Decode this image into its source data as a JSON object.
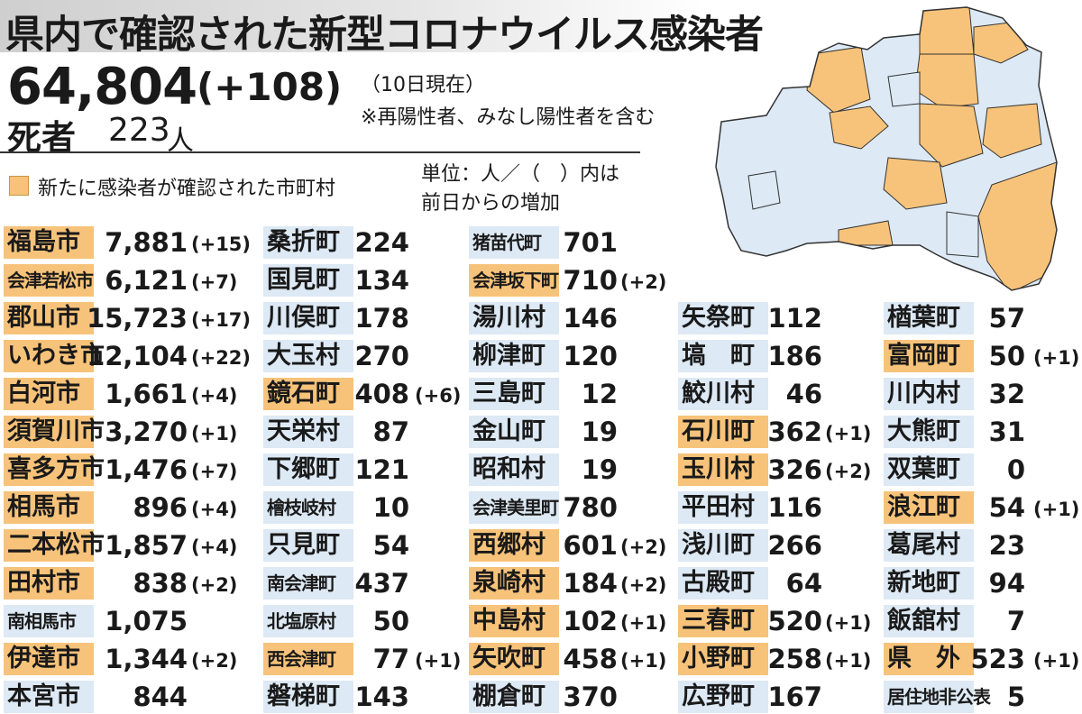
{
  "title": "県内で確認された新型コロナウイルス感染者",
  "total": {
    "count": "64,804",
    "change": "(+108)",
    "as_of": "（10日現在）",
    "note": "※再陽性者、みなし陽性者を含む"
  },
  "deaths": {
    "label": "死者",
    "count": "223",
    "unit": "人"
  },
  "legend": {
    "label": "新たに感染者が確認された市町村",
    "color": "#f7c37a",
    "base_color": "#dde9f4"
  },
  "unit_note": {
    "line1": "単位：人／（　）内は",
    "line2": "前日からの増加"
  },
  "columns": [
    {
      "rows": [
        {
          "name": "福島市",
          "count": "7,881",
          "change": "(+15)",
          "highlight": true
        },
        {
          "name": "会津若松市",
          "count": "6,121",
          "change": "(+7)",
          "highlight": true,
          "small": true
        },
        {
          "name": "郡山市",
          "count": "15,723",
          "change": "(+17)",
          "highlight": true
        },
        {
          "name": "いわき市",
          "count": "12,104",
          "change": "(+22)",
          "highlight": true
        },
        {
          "name": "白河市",
          "count": "1,661",
          "change": "(+4)",
          "highlight": true
        },
        {
          "name": "須賀川市",
          "count": "3,270",
          "change": "(+1)",
          "highlight": true
        },
        {
          "name": "喜多方市",
          "count": "1,476",
          "change": "(+7)",
          "highlight": true
        },
        {
          "name": "相馬市",
          "count": "896",
          "change": "(+4)",
          "highlight": true
        },
        {
          "name": "二本松市",
          "count": "1,857",
          "change": "(+4)",
          "highlight": true
        },
        {
          "name": "田村市",
          "count": "838",
          "change": "(+2)",
          "highlight": true
        },
        {
          "name": "南相馬市",
          "count": "1,075",
          "change": "",
          "highlight": false,
          "small": true
        },
        {
          "name": "伊達市",
          "count": "1,344",
          "change": "(+2)",
          "highlight": true
        },
        {
          "name": "本宮市",
          "count": "844",
          "change": "",
          "highlight": false
        }
      ]
    },
    {
      "rows": [
        {
          "name": "桑折町",
          "count": "224",
          "change": "",
          "highlight": false
        },
        {
          "name": "国見町",
          "count": "134",
          "change": "",
          "highlight": false
        },
        {
          "name": "川俣町",
          "count": "178",
          "change": "",
          "highlight": false
        },
        {
          "name": "大玉村",
          "count": "270",
          "change": "",
          "highlight": false
        },
        {
          "name": "鏡石町",
          "count": "408",
          "change": "(+6)",
          "highlight": true
        },
        {
          "name": "天栄村",
          "count": "87",
          "change": "",
          "highlight": false
        },
        {
          "name": "下郷町",
          "count": "121",
          "change": "",
          "highlight": false
        },
        {
          "name": "檜枝岐村",
          "count": "10",
          "change": "",
          "highlight": false,
          "small": true
        },
        {
          "name": "只見町",
          "count": "54",
          "change": "",
          "highlight": false
        },
        {
          "name": "南会津町",
          "count": "437",
          "change": "",
          "highlight": false,
          "small": true
        },
        {
          "name": "北塩原村",
          "count": "50",
          "change": "",
          "highlight": false,
          "small": true
        },
        {
          "name": "西会津町",
          "count": "77",
          "change": "(+1)",
          "highlight": true,
          "small": true
        },
        {
          "name": "磐梯町",
          "count": "143",
          "change": "",
          "highlight": false
        }
      ]
    },
    {
      "rows": [
        {
          "name": "猪苗代町",
          "count": "701",
          "change": "",
          "highlight": false,
          "small": true
        },
        {
          "name": "会津坂下町",
          "count": "710",
          "change": "(+2)",
          "highlight": true,
          "small": true
        },
        {
          "name": "湯川村",
          "count": "146",
          "change": "",
          "highlight": false
        },
        {
          "name": "柳津町",
          "count": "120",
          "change": "",
          "highlight": false
        },
        {
          "name": "三島町",
          "count": "12",
          "change": "",
          "highlight": false
        },
        {
          "name": "金山町",
          "count": "19",
          "change": "",
          "highlight": false
        },
        {
          "name": "昭和村",
          "count": "19",
          "change": "",
          "highlight": false
        },
        {
          "name": "会津美里町",
          "count": "780",
          "change": "",
          "highlight": false,
          "small": true
        },
        {
          "name": "西郷村",
          "count": "601",
          "change": "(+2)",
          "highlight": true
        },
        {
          "name": "泉崎村",
          "count": "184",
          "change": "(+2)",
          "highlight": true
        },
        {
          "name": "中島村",
          "count": "102",
          "change": "(+1)",
          "highlight": true
        },
        {
          "name": "矢吹町",
          "count": "458",
          "change": "(+1)",
          "highlight": true
        },
        {
          "name": "棚倉町",
          "count": "370",
          "change": "",
          "highlight": false
        }
      ]
    },
    {
      "rows": [
        {
          "name": "矢祭町",
          "count": "112",
          "change": "",
          "highlight": false
        },
        {
          "name": "塙　町",
          "count": "186",
          "change": "",
          "highlight": false
        },
        {
          "name": "鮫川村",
          "count": "46",
          "change": "",
          "highlight": false
        },
        {
          "name": "石川町",
          "count": "362",
          "change": "(+1)",
          "highlight": true
        },
        {
          "name": "玉川村",
          "count": "326",
          "change": "(+2)",
          "highlight": true
        },
        {
          "name": "平田村",
          "count": "116",
          "change": "",
          "highlight": false
        },
        {
          "name": "浅川町",
          "count": "266",
          "change": "",
          "highlight": false
        },
        {
          "name": "古殿町",
          "count": "64",
          "change": "",
          "highlight": false
        },
        {
          "name": "三春町",
          "count": "520",
          "change": "(+1)",
          "highlight": true
        },
        {
          "name": "小野町",
          "count": "258",
          "change": "(+1)",
          "highlight": true
        },
        {
          "name": "広野町",
          "count": "167",
          "change": "",
          "highlight": false
        }
      ]
    },
    {
      "rows": [
        {
          "name": "楢葉町",
          "count": "57",
          "change": "",
          "highlight": false
        },
        {
          "name": "富岡町",
          "count": "50",
          "change": "(+1)",
          "highlight": true
        },
        {
          "name": "川内村",
          "count": "32",
          "change": "",
          "highlight": false
        },
        {
          "name": "大熊町",
          "count": "31",
          "change": "",
          "highlight": false
        },
        {
          "name": "双葉町",
          "count": "0",
          "change": "",
          "highlight": false
        },
        {
          "name": "浪江町",
          "count": "54",
          "change": "(+1)",
          "highlight": true
        },
        {
          "name": "葛尾村",
          "count": "23",
          "change": "",
          "highlight": false
        },
        {
          "name": "新地町",
          "count": "94",
          "change": "",
          "highlight": false
        },
        {
          "name": "飯舘村",
          "count": "7",
          "change": "",
          "highlight": false
        },
        {
          "name": "県　外",
          "count": "523",
          "change": "(+1)",
          "highlight": true
        },
        {
          "name": "居住地非公表",
          "count": "5",
          "change": "",
          "highlight": false,
          "small": true
        }
      ]
    }
  ]
}
